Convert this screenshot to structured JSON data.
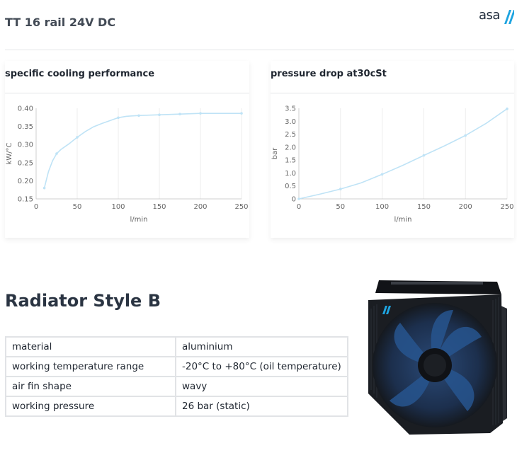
{
  "page": {
    "title": "TT 16 rail 24V DC",
    "logo_text": "asa",
    "logo_icon": "asa-slash-logo",
    "accent_color": "#1ea4e0"
  },
  "charts_section": [
    {
      "card_title": "specific cooling performance",
      "chart_data": {
        "type": "line",
        "title": "specific cooling performance",
        "xlabel": "l/min",
        "ylabel": "kW/°C",
        "xlim": [
          0,
          250
        ],
        "ylim": [
          0.15,
          0.4
        ],
        "x_ticks": [
          0,
          50,
          100,
          150,
          200,
          250
        ],
        "y_ticks": [
          "0.15",
          "0.20",
          "0.25",
          "0.30",
          "0.35",
          "0.40"
        ],
        "grid": "vertical",
        "line_color": "#bfe3f6",
        "series": [
          {
            "x": [
              10,
              15,
              20,
              25,
              30,
              40,
              50,
              60,
              70,
              80,
              90,
              100,
              110,
              125,
              150,
              175,
              200,
              225,
              250
            ],
            "values": [
              0.18,
              0.225,
              0.255,
              0.275,
              0.286,
              0.302,
              0.32,
              0.336,
              0.349,
              0.358,
              0.366,
              0.374,
              0.378,
              0.38,
              0.382,
              0.384,
              0.386,
              0.386,
              0.386
            ],
            "markers": [
              10,
              25,
              50,
              75,
              100,
              125,
              150,
              175,
              200,
              250
            ]
          }
        ]
      }
    },
    {
      "card_title": "pressure drop at30cSt",
      "chart_data": {
        "type": "line",
        "title": "pressure drop at30cSt",
        "xlabel": "l/min",
        "ylabel": "bar",
        "xlim": [
          0,
          250
        ],
        "ylim": [
          0,
          3.5
        ],
        "x_ticks": [
          0,
          50,
          100,
          150,
          200,
          250
        ],
        "y_ticks": [
          "0",
          "0.5",
          "1.0",
          "1.5",
          "2.0",
          "2.5",
          "3.0",
          "3.5"
        ],
        "grid": "vertical",
        "line_color": "#bfe3f6",
        "series": [
          {
            "x": [
              0,
              25,
              50,
              75,
              100,
              125,
              150,
              175,
              200,
              225,
              250
            ],
            "values": [
              0,
              0.18,
              0.38,
              0.62,
              0.95,
              1.3,
              1.68,
              2.05,
              2.45,
              2.92,
              3.48
            ],
            "markers": [
              0,
              50,
              100,
              150,
              200,
              250
            ]
          }
        ]
      }
    }
  ],
  "radiator": {
    "heading": "Radiator Style B",
    "specs": [
      {
        "key": "material",
        "value": "aluminium"
      },
      {
        "key": "working temperature range",
        "value": "-20°C to +80°C (oil temperature)"
      },
      {
        "key": "air fin shape",
        "value": "wavy"
      },
      {
        "key": "working pressure",
        "value": "26 bar (static)"
      }
    ],
    "image_icon": "radiator-fan-icon",
    "fan_color": "#1c3f6e",
    "body_color": "#1a1d22"
  }
}
